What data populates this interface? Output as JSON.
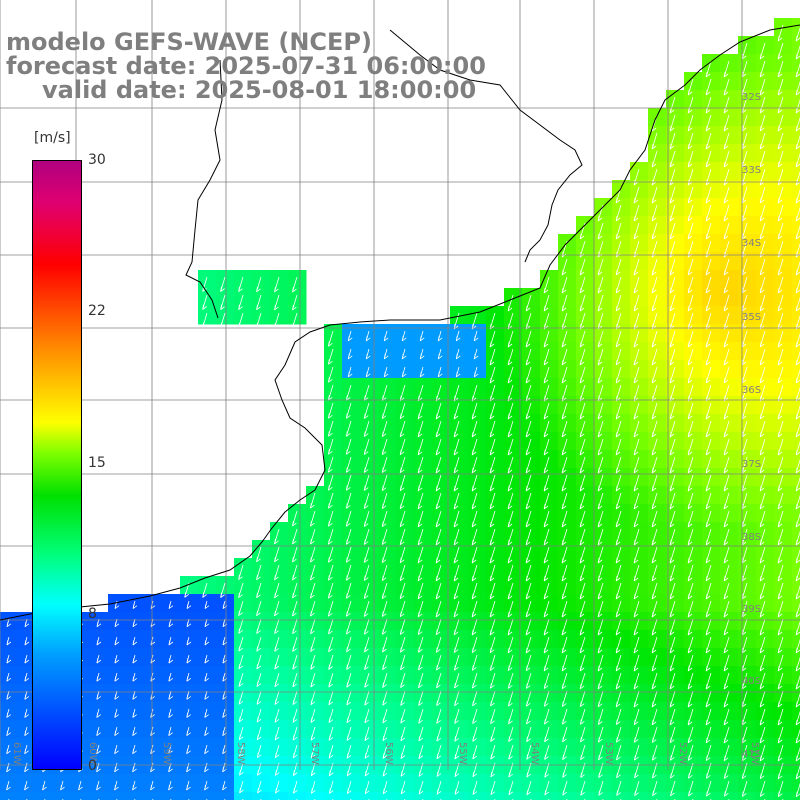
{
  "title": {
    "line1": "modelo GEFS-WAVE (NCEP)",
    "line2": "forecast date: 2025-07-31 06:00:00",
    "line3": "valid date: 2025-08-01 18:00:00"
  },
  "colorbar": {
    "unit": "[m/s]",
    "ticks": [
      "30",
      "22",
      "15",
      "8",
      "0"
    ],
    "min": 0,
    "max": 30
  },
  "axes": {
    "lat_labels": [
      "32S",
      "33S",
      "34S",
      "35S",
      "36S",
      "37S",
      "38S",
      "39S",
      "40S",
      "41S"
    ],
    "lon_labels": [
      "61W",
      "60W",
      "59W",
      "58W",
      "57W",
      "56W",
      "55W",
      "54W",
      "53W",
      "52W",
      "51W"
    ]
  },
  "colors": {
    "land": "#ffffff",
    "grid": "#808080",
    "coast": "#000000",
    "title": "#7f7f7f",
    "arrows": "#ffffff"
  }
}
